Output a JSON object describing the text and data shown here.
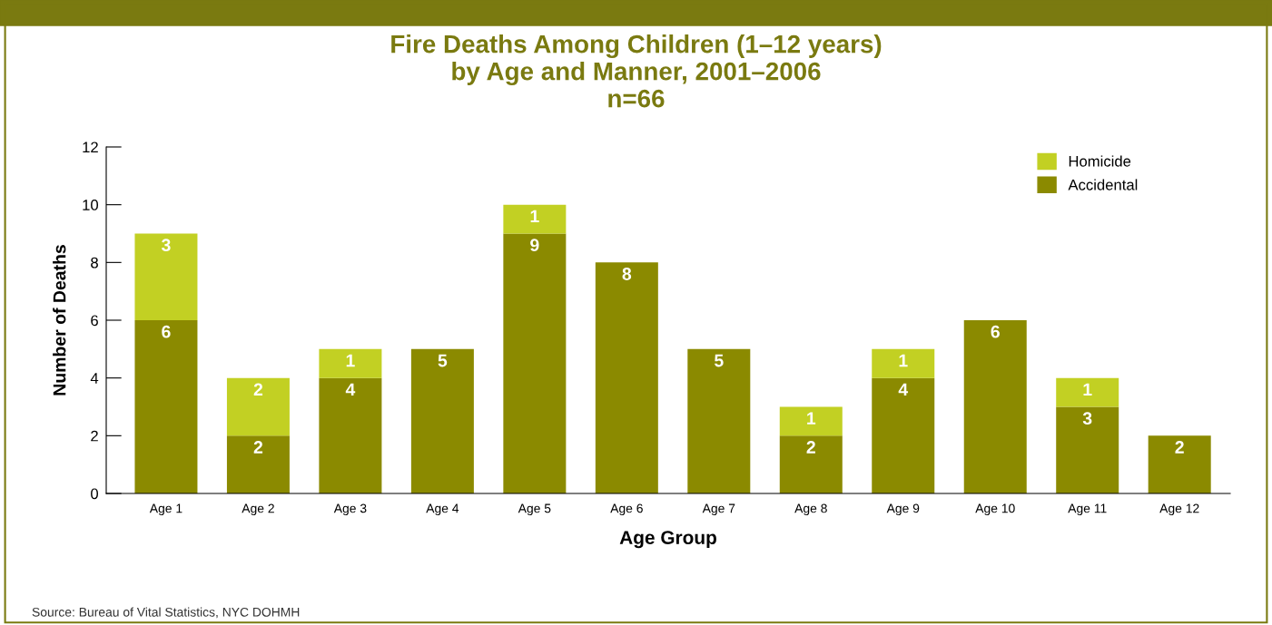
{
  "chart_data": {
    "type": "bar",
    "title": "Fire Deaths Among Children (1–12 years)\nby Age and Manner, 2001–2006\nn=66",
    "xlabel": "Age Group",
    "ylabel": "Number of Deaths",
    "categories": [
      "Age 1",
      "Age 2",
      "Age 3",
      "Age 4",
      "Age 5",
      "Age 6",
      "Age 7",
      "Age 8",
      "Age 9",
      "Age 10",
      "Age 11",
      "Age 12"
    ],
    "stacked": true,
    "series": [
      {
        "name": "Accidental",
        "color": "#8b8a00",
        "values": [
          6,
          2,
          4,
          5,
          9,
          8,
          5,
          2,
          4,
          6,
          3,
          2
        ]
      },
      {
        "name": "Homicide",
        "color": "#c2d023",
        "values": [
          3,
          2,
          1,
          null,
          1,
          null,
          null,
          1,
          1,
          null,
          1,
          null
        ]
      }
    ],
    "ylim": [
      0,
      12
    ],
    "yticks": [
      0,
      2,
      4,
      6,
      8,
      10,
      12
    ],
    "grid": false,
    "legend": "top right",
    "data_labels": true,
    "annotations": [
      "Source: Bureau of Vital Statistics, NYC DOHMH"
    ]
  }
}
